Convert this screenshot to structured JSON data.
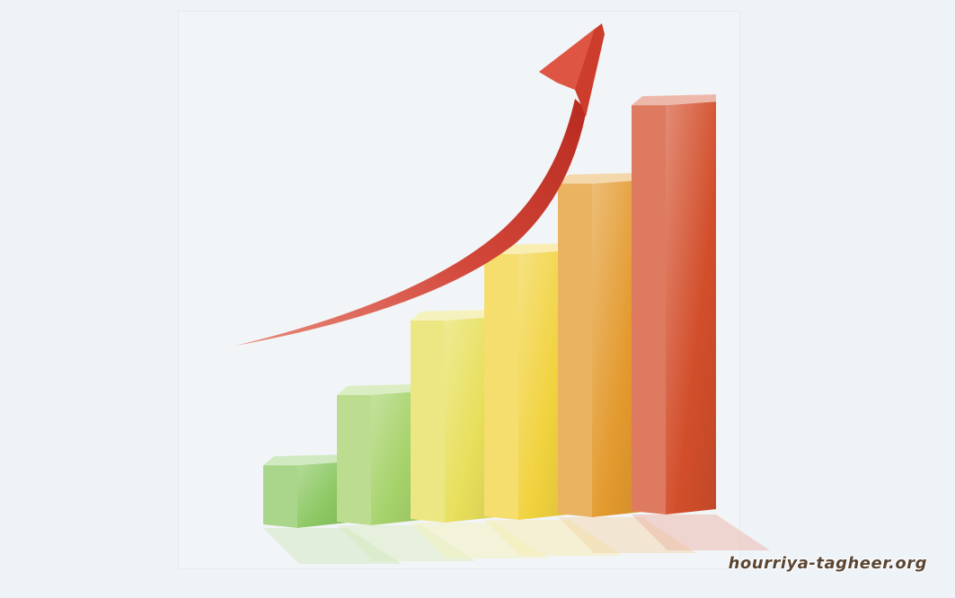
{
  "chart_data": {
    "type": "bar",
    "title": "",
    "xlabel": "",
    "ylabel": "",
    "categories": [
      "",
      "",
      "",
      "",
      "",
      ""
    ],
    "values": [
      1.8,
      3.5,
      5.3,
      6.9,
      8.6,
      10.5
    ],
    "ylim": [
      0,
      11
    ],
    "grid": false,
    "legend": "none",
    "trend_arrow": "rising",
    "bar_colors": [
      "#8cc863",
      "#a6d26a",
      "#e7df5a",
      "#f1d23e",
      "#e39a2e",
      "#d24e2b"
    ],
    "arrow_color": "#cc3d2c"
  },
  "watermark": {
    "text": "hourriya-tagheer.org"
  }
}
